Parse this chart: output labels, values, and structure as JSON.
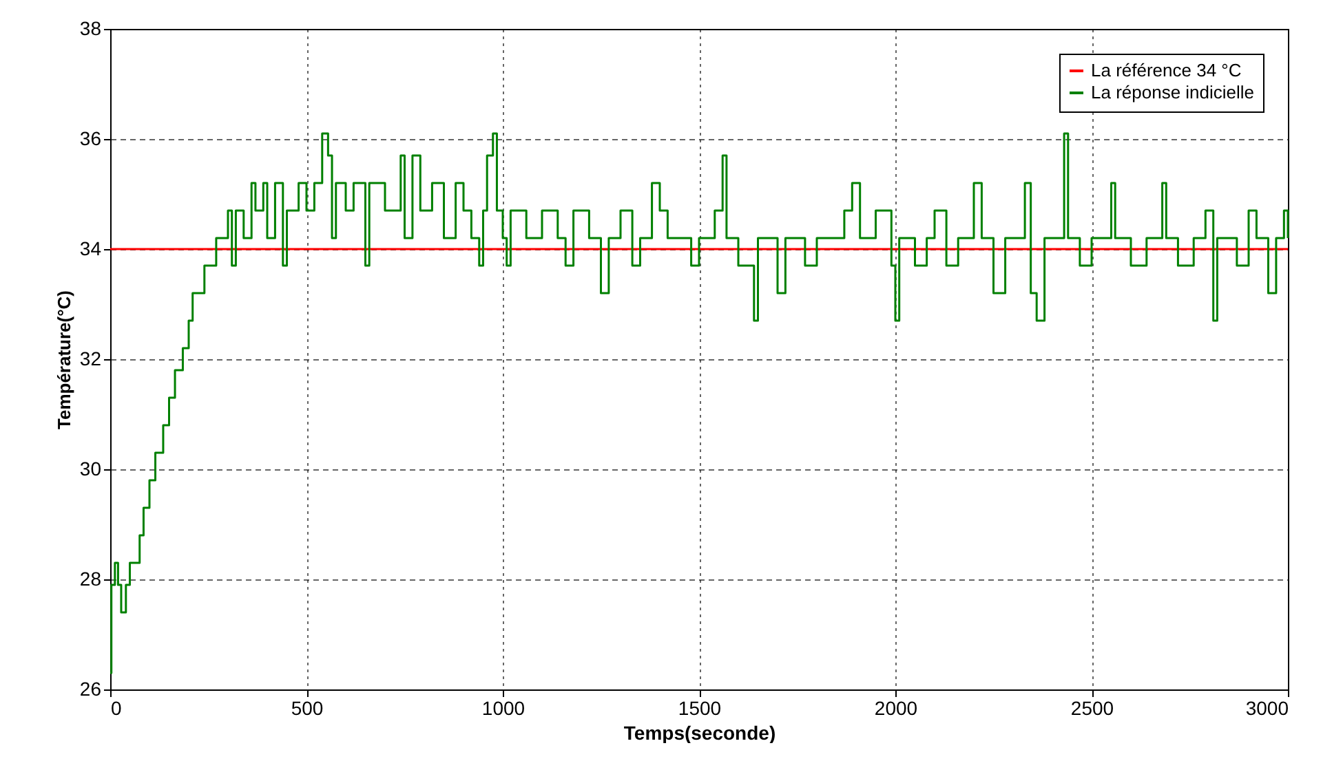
{
  "chart_data": {
    "type": "step",
    "xlabel": "Temps(seconde)",
    "ylabel": "Température(°C)",
    "xlim": [
      0,
      3000
    ],
    "xticks": [
      0,
      500,
      1000,
      1500,
      2000,
      2500,
      3000
    ],
    "ylim": [
      26,
      38
    ],
    "yticks": [
      26,
      28,
      30,
      32,
      34,
      36,
      38
    ],
    "grid": true,
    "legend": "top right",
    "line_style": "solid",
    "series": [
      {
        "name": "La référence 34 °C",
        "type": "line",
        "color": "#ff0000",
        "x": [
          0,
          3000
        ],
        "values": [
          34,
          34
        ]
      },
      {
        "name": "La réponse indicielle",
        "type": "step",
        "color": "#008000",
        "x": [
          0,
          3,
          12,
          20,
          28,
          40,
          50,
          75,
          85,
          100,
          115,
          135,
          150,
          165,
          185,
          200,
          210,
          240,
          270,
          300,
          310,
          320,
          340,
          360,
          370,
          390,
          400,
          420,
          440,
          450,
          480,
          500,
          520,
          540,
          555,
          565,
          575,
          600,
          620,
          650,
          660,
          700,
          740,
          750,
          770,
          790,
          820,
          850,
          880,
          900,
          920,
          940,
          950,
          960,
          975,
          985,
          1000,
          1010,
          1020,
          1060,
          1100,
          1140,
          1160,
          1180,
          1220,
          1250,
          1270,
          1300,
          1330,
          1350,
          1380,
          1400,
          1420,
          1480,
          1500,
          1540,
          1560,
          1570,
          1600,
          1640,
          1650,
          1700,
          1720,
          1770,
          1800,
          1870,
          1890,
          1910,
          1950,
          1990,
          2000,
          2010,
          2050,
          2080,
          2100,
          2130,
          2160,
          2200,
          2220,
          2250,
          2280,
          2330,
          2345,
          2360,
          2380,
          2430,
          2440,
          2470,
          2500,
          2550,
          2560,
          2600,
          2640,
          2680,
          2690,
          2720,
          2760,
          2790,
          2810,
          2820,
          2870,
          2900,
          2920,
          2950,
          2970,
          2990,
          3000
        ],
        "values": [
          26.3,
          27.9,
          28.3,
          27.9,
          27.4,
          27.9,
          28.3,
          28.8,
          29.3,
          29.8,
          30.3,
          30.8,
          31.3,
          31.8,
          32.2,
          32.7,
          33.2,
          33.7,
          34.2,
          34.7,
          33.7,
          34.7,
          34.2,
          35.2,
          34.7,
          35.2,
          34.2,
          35.2,
          33.7,
          34.7,
          35.2,
          34.7,
          35.2,
          36.1,
          35.7,
          34.2,
          35.2,
          34.7,
          35.2,
          33.7,
          35.2,
          34.7,
          35.7,
          34.2,
          35.7,
          34.7,
          35.2,
          34.2,
          35.2,
          34.7,
          34.2,
          33.7,
          34.7,
          35.7,
          36.1,
          34.7,
          34.2,
          33.7,
          34.7,
          34.2,
          34.7,
          34.2,
          33.7,
          34.7,
          34.2,
          33.2,
          34.2,
          34.7,
          33.7,
          34.2,
          35.2,
          34.7,
          34.2,
          33.7,
          34.2,
          34.7,
          35.7,
          34.2,
          33.7,
          32.7,
          34.2,
          33.2,
          34.2,
          33.7,
          34.2,
          34.7,
          35.2,
          34.2,
          34.7,
          33.7,
          32.7,
          34.2,
          33.7,
          34.2,
          34.7,
          33.7,
          34.2,
          35.2,
          34.2,
          33.2,
          34.2,
          35.2,
          33.2,
          32.7,
          34.2,
          36.1,
          34.2,
          33.7,
          34.2,
          35.2,
          34.2,
          33.7,
          34.2,
          35.2,
          34.2,
          33.7,
          34.2,
          34.7,
          32.7,
          34.2,
          33.7,
          34.7,
          34.2,
          33.2,
          34.2,
          34.7,
          34.2
        ]
      }
    ]
  }
}
